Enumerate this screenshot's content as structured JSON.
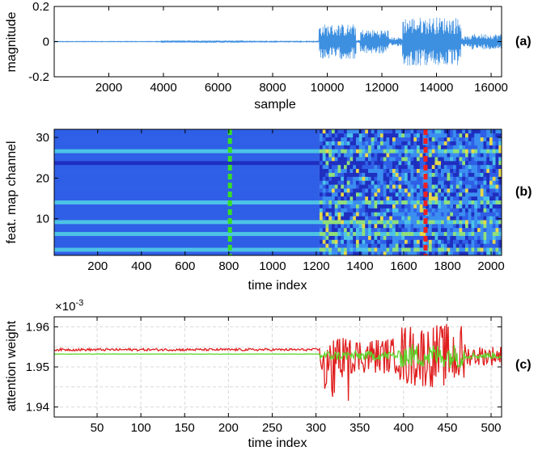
{
  "figure": {
    "panel_labels": [
      "(a)",
      "(b)",
      "(c)"
    ]
  },
  "chart_data": [
    {
      "type": "line",
      "panel_label": "(a)",
      "title": "",
      "xlabel": "sample",
      "ylabel": "magnitude",
      "xlim": [
        0,
        16384
      ],
      "ylim": [
        -0.2,
        0.2
      ],
      "xticks": [
        2000,
        4000,
        6000,
        8000,
        10000,
        12000,
        14000,
        16000
      ],
      "xtick_labels": [
        "2000",
        "4000",
        "6000",
        "8000",
        "10000",
        "12000",
        "14000",
        "16000"
      ],
      "yticks": [
        -0.2,
        0,
        0.2
      ],
      "ytick_labels": [
        "-0.2",
        "0",
        "0.2"
      ],
      "grid": false,
      "series_color": "#3d8fe0",
      "envelope_segments": [
        {
          "start": 0,
          "end": 3900,
          "amplitude": 0.002
        },
        {
          "start": 3900,
          "end": 6900,
          "amplitude": 0.006
        },
        {
          "start": 6900,
          "end": 9700,
          "amplitude": 0.003
        },
        {
          "start": 9700,
          "end": 11050,
          "amplitude": 0.1
        },
        {
          "start": 11050,
          "end": 11200,
          "amplitude": 0.01
        },
        {
          "start": 11200,
          "end": 12250,
          "amplitude": 0.07
        },
        {
          "start": 12250,
          "end": 12750,
          "amplitude": 0.025
        },
        {
          "start": 12750,
          "end": 14900,
          "amplitude": 0.14
        },
        {
          "start": 14900,
          "end": 15300,
          "amplitude": 0.03
        },
        {
          "start": 15300,
          "end": 16384,
          "amplitude": 0.045
        }
      ]
    },
    {
      "type": "heatmap",
      "panel_label": "(b)",
      "title": "",
      "xlabel": "time index",
      "ylabel": "feat. map channel",
      "xlim": [
        1,
        2048
      ],
      "ylim": [
        1,
        32
      ],
      "xticks": [
        200,
        400,
        600,
        800,
        1000,
        1200,
        1400,
        1600,
        1800,
        2000
      ],
      "xtick_labels": [
        "200",
        "400",
        "600",
        "800",
        "1000",
        "1200",
        "1400",
        "1600",
        "1800",
        "2000"
      ],
      "yticks": [
        10,
        20,
        30
      ],
      "ytick_labels": [
        "10",
        "20",
        "30"
      ],
      "channels": 32,
      "transition_index": 1215,
      "bright_channels": [
        14,
        2,
        6,
        27,
        9
      ],
      "dark_channels": [
        24
      ],
      "colormap": [
        "#1f2fbf",
        "#2f5fe6",
        "#3b8ef0",
        "#4cc3e6",
        "#8fe07a",
        "#e8d84a",
        "#e06b4a"
      ],
      "markers": [
        {
          "time_index": 805,
          "color": "#38e024",
          "style": "dashed"
        },
        {
          "time_index": 1700,
          "color": "#f02020",
          "style": "dashed"
        }
      ]
    },
    {
      "type": "line",
      "panel_label": "(c)",
      "title": "",
      "xlabel": "time index",
      "ylabel": "attention weight",
      "exponent_label": "×10",
      "exponent_power": "-3",
      "xlim": [
        1,
        512
      ],
      "ylim": [
        1.9375,
        1.9625
      ],
      "xticks": [
        50,
        100,
        150,
        200,
        250,
        300,
        350,
        400,
        450,
        500
      ],
      "xtick_labels": [
        "50",
        "100",
        "150",
        "200",
        "250",
        "300",
        "350",
        "400",
        "450",
        "500"
      ],
      "yticks": [
        1.94,
        1.95,
        1.96
      ],
      "ytick_labels": [
        "1.94",
        "1.95",
        "1.96"
      ],
      "grid": true,
      "series": [
        {
          "name": "red",
          "color": "#e01e1e",
          "baseline_early": 1.9543,
          "baseline_late": 1.9528,
          "transition_index": 305
        },
        {
          "name": "green",
          "color": "#5ed62c",
          "baseline_early": 1.9532,
          "baseline_late": 1.9528,
          "transition_index": 305
        }
      ]
    }
  ]
}
